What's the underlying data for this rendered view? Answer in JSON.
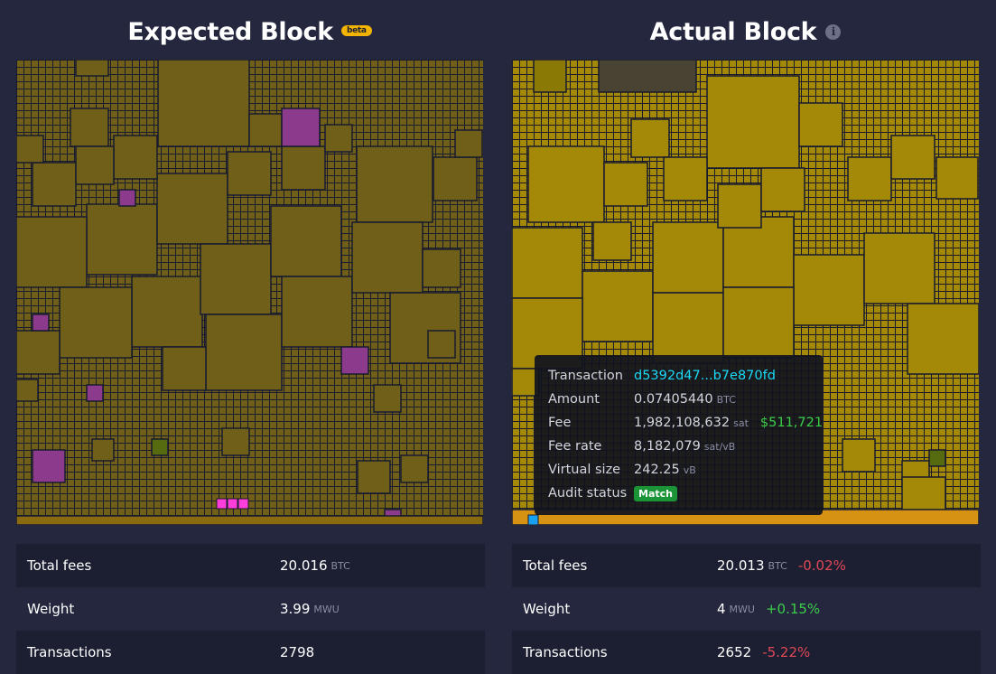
{
  "expected": {
    "title": "Expected Block",
    "badge": "beta",
    "stats": [
      {
        "label": "Total fees",
        "value": "20.016",
        "unit": "BTC"
      },
      {
        "label": "Weight",
        "value": "3.99",
        "unit": "MWU"
      },
      {
        "label": "Transactions",
        "value": "2798",
        "unit": ""
      }
    ]
  },
  "actual": {
    "title": "Actual Block",
    "info_icon": "info-icon",
    "stats": [
      {
        "label": "Total fees",
        "value": "20.013",
        "unit": "BTC",
        "delta": "-0.02%"
      },
      {
        "label": "Weight",
        "value": "4",
        "unit": "MWU",
        "delta": "+0.15%"
      },
      {
        "label": "Transactions",
        "value": "2652",
        "unit": "",
        "delta": "-5.22%"
      }
    ]
  },
  "tooltip": {
    "transaction_label": "Transaction",
    "transaction_value": "d5392d47...b7e870fd",
    "amount_label": "Amount",
    "amount_value": "0.07405440",
    "amount_unit": "BTC",
    "fee_label": "Fee",
    "fee_value": "1,982,108,632",
    "fee_unit": "sat",
    "fee_usd": "$511,721",
    "fee_rate_label": "Fee rate",
    "fee_rate_value": "8,182,079",
    "fee_rate_unit": "sat/vB",
    "vsize_label": "Virtual size",
    "vsize_value": "242.25",
    "vsize_unit": "vB",
    "audit_label": "Audit status",
    "audit_value": "Match"
  },
  "colors": {
    "background": "#24273e",
    "expected_tx": "#6f5f18",
    "actual_tx": "#a48908",
    "removed_tx": "#8c3b8c",
    "added_tx": "#ff3ddb",
    "positive": "#3bcd49",
    "negative": "#e04856",
    "link": "#1bd8f4"
  }
}
